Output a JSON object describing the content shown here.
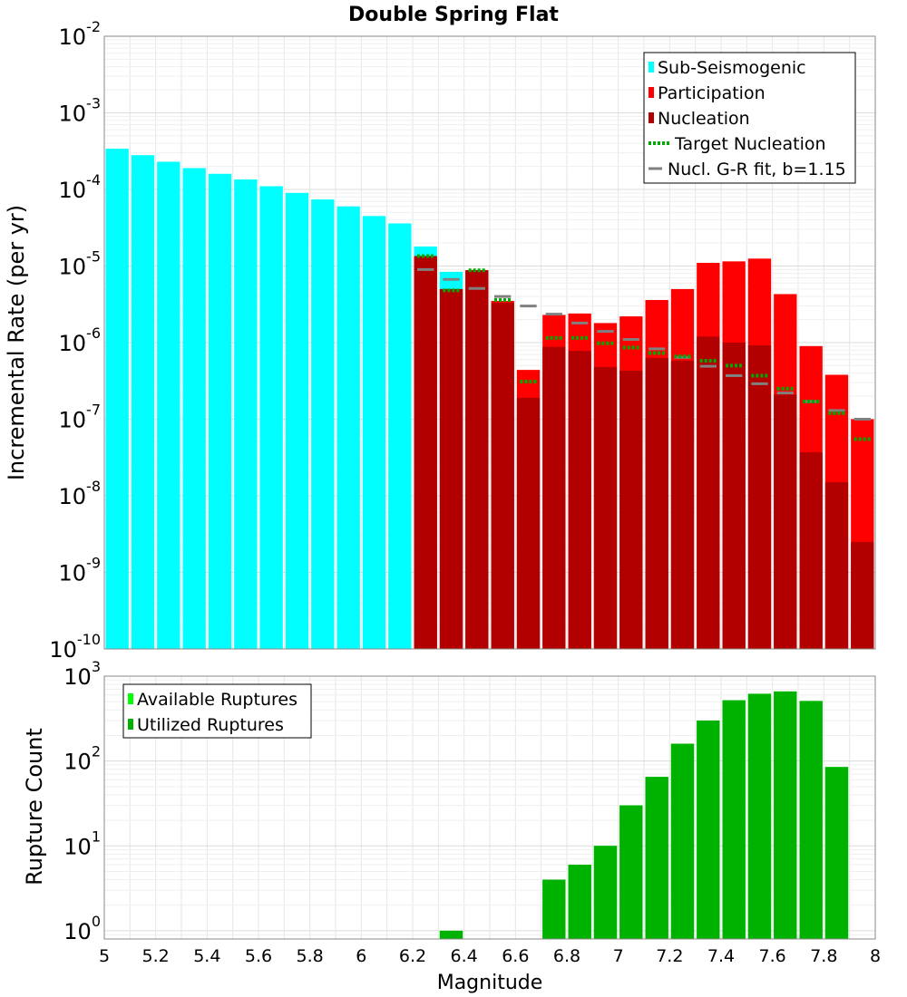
{
  "chart_data": [
    {
      "type": "bar",
      "title": "Double Spring Flat",
      "xlabel": "",
      "ylabel": "Incremental Rate (per yr)",
      "yscale": "log",
      "xlim": [
        5,
        8
      ],
      "ylim": [
        1e-10,
        0.01
      ],
      "bin_width": 0.1,
      "y_tick_exponents": [
        -10,
        -9,
        -8,
        -7,
        -6,
        -5,
        -4,
        -3,
        -2
      ],
      "legend": {
        "position": "top-right",
        "entries": [
          {
            "label": "Sub-Seismogenic",
            "color": "#00ffff",
            "style": "bar"
          },
          {
            "label": "Participation",
            "color": "#ff0000",
            "style": "bar"
          },
          {
            "label": "Nucleation",
            "color": "#b20000",
            "style": "bar"
          },
          {
            "label": "Target Nucleation",
            "color": "#00aa00",
            "style": "dotted"
          },
          {
            "label": "Nucl. G-R fit, b=1.15",
            "color": "#808080",
            "style": "line"
          }
        ]
      },
      "series": [
        {
          "name": "Sub-Seismogenic",
          "color": "#00ffff",
          "x": [
            5.05,
            5.15,
            5.25,
            5.35,
            5.45,
            5.55,
            5.65,
            5.75,
            5.85,
            5.95,
            6.05,
            6.15,
            6.25,
            6.35
          ],
          "values": [
            0.00034,
            0.00028,
            0.00023,
            0.00019,
            0.00016,
            0.000135,
            0.00011,
            9e-05,
            7.4e-05,
            6e-05,
            4.5e-05,
            3.6e-05,
            1.8e-05,
            8.4e-06
          ]
        },
        {
          "name": "Participation",
          "color": "#ff0000",
          "x": [
            6.25,
            6.35,
            6.45,
            6.55,
            6.65,
            6.75,
            6.85,
            6.95,
            7.05,
            7.15,
            7.25,
            7.35,
            7.45,
            7.55,
            7.65,
            7.75,
            7.85,
            7.95
          ],
          "values": [
            1.35e-05,
            5e-06,
            8.8e-06,
            3.5e-06,
            4.4e-07,
            2.3e-06,
            2.4e-06,
            1.8e-06,
            2.2e-06,
            3.6e-06,
            5e-06,
            1.1e-05,
            1.15e-05,
            1.25e-05,
            4.3e-06,
            9e-07,
            3.8e-07,
            1e-07
          ]
        },
        {
          "name": "Nucleation",
          "color": "#b20000",
          "x": [
            6.25,
            6.35,
            6.45,
            6.55,
            6.65,
            6.75,
            6.85,
            6.95,
            7.05,
            7.15,
            7.25,
            7.35,
            7.45,
            7.55,
            7.65,
            7.75,
            7.85,
            7.95
          ],
          "values": [
            1.35e-05,
            5e-06,
            8.8e-06,
            3.3e-06,
            1.9e-07,
            8.8e-07,
            7.8e-07,
            4.8e-07,
            4.3e-07,
            6.3e-07,
            5.8e-07,
            1.2e-06,
            1e-06,
            9.2e-07,
            2.1e-07,
            3.7e-08,
            1.5e-08,
            2.5e-09
          ]
        },
        {
          "name": "Target Nucleation",
          "color": "#00aa00",
          "x": [
            6.25,
            6.35,
            6.45,
            6.55,
            6.65,
            6.75,
            6.85,
            6.95,
            7.05,
            7.15,
            7.25,
            7.35,
            7.45,
            7.55,
            7.65,
            7.75,
            7.85,
            7.95
          ],
          "values": [
            1.35e-05,
            4.8e-06,
            8.8e-06,
            3.6e-06,
            3.1e-07,
            1.15e-06,
            1.15e-06,
            9.8e-07,
            8.6e-07,
            7.3e-07,
            6.6e-07,
            5.8e-07,
            5e-07,
            3.7e-07,
            2.5e-07,
            1.7e-07,
            1.2e-07,
            5.5e-08
          ]
        },
        {
          "name": "Nucl. G-R fit, b=1.15",
          "color": "#808080",
          "x": [
            6.25,
            6.35,
            6.45,
            6.55,
            6.65,
            6.75,
            6.85,
            6.95,
            7.05,
            7.15,
            7.25,
            7.35,
            7.45,
            7.55,
            7.65,
            7.75,
            7.85,
            7.95
          ],
          "values": [
            9e-06,
            6.7e-06,
            5.1e-06,
            4e-06,
            3e-06,
            2.35e-06,
            1.8e-06,
            1.4e-06,
            1.1e-06,
            8.3e-07,
            6.4e-07,
            4.9e-07,
            3.7e-07,
            2.9e-07,
            2.2e-07,
            1.7e-07,
            1.3e-07,
            1e-07
          ]
        }
      ]
    },
    {
      "type": "bar",
      "title": "",
      "xlabel": "Magnitude",
      "ylabel": "Rupture Count",
      "yscale": "log",
      "xlim": [
        5,
        8
      ],
      "ylim": [
        0.8,
        1000
      ],
      "x_tick_labels": [
        "5",
        "5.2",
        "5.4",
        "5.6",
        "5.8",
        "6",
        "6.2",
        "6.4",
        "6.6",
        "6.8",
        "7",
        "7.2",
        "7.4",
        "7.6",
        "7.8",
        "8"
      ],
      "y_tick_exponents": [
        0,
        1,
        2,
        3
      ],
      "legend": {
        "position": "top-left",
        "entries": [
          {
            "label": "Available Ruptures",
            "color": "#00ff00",
            "style": "bar"
          },
          {
            "label": "Utilized Ruptures",
            "color": "#00b200",
            "style": "bar"
          }
        ]
      },
      "series": [
        {
          "name": "Available Ruptures",
          "color": "#00ff00",
          "x": [
            6.35,
            6.75,
            6.85,
            6.95,
            7.05,
            7.15,
            7.25,
            7.35,
            7.45,
            7.55,
            7.65,
            7.75,
            7.85
          ],
          "values": [
            1,
            4,
            6,
            10,
            30,
            65,
            160,
            300,
            520,
            620,
            660,
            510,
            85
          ]
        },
        {
          "name": "Utilized Ruptures",
          "color": "#00b200",
          "x": [
            6.35,
            6.75,
            6.85,
            6.95,
            7.05,
            7.15,
            7.25,
            7.35,
            7.45,
            7.55,
            7.65,
            7.75,
            7.85
          ],
          "values": [
            1,
            4,
            6,
            10,
            30,
            65,
            160,
            300,
            520,
            620,
            660,
            510,
            85
          ]
        }
      ]
    }
  ]
}
